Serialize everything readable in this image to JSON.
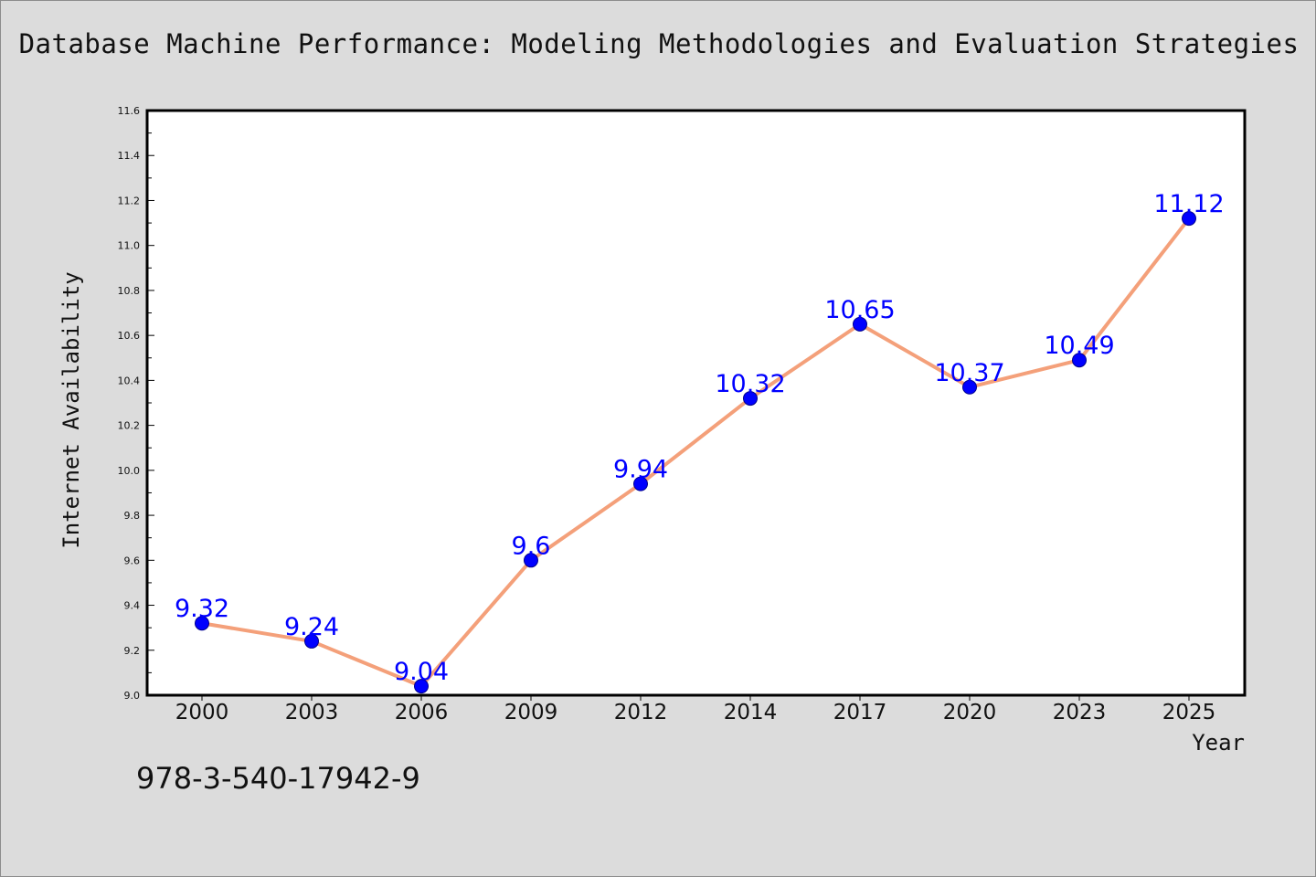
{
  "chart_data": {
    "type": "line",
    "title": "Database Machine Performance: Modeling Methodologies and Evaluation Strategies",
    "xlabel": "Year",
    "ylabel": "Internet Availability",
    "categories": [
      "2000",
      "2003",
      "2006",
      "2009",
      "2012",
      "2014",
      "2017",
      "2020",
      "2023",
      "2025"
    ],
    "series": [
      {
        "values": [
          9.32,
          9.24,
          9.04,
          9.6,
          9.94,
          10.32,
          10.65,
          10.37,
          10.49,
          11.12
        ]
      }
    ],
    "data_labels": [
      "9.32",
      "9.24",
      "9.04",
      "9.6",
      "9.94",
      "10.32",
      "10.65",
      "10.37",
      "10.49",
      "11.12"
    ],
    "ylim": [
      9.0,
      11.6
    ],
    "yticks": [
      "9.0",
      "9.2",
      "9.4",
      "9.6",
      "9.8",
      "10.0",
      "10.2",
      "10.4",
      "10.6",
      "10.8",
      "11.0",
      "11.2",
      "11.4",
      "11.6"
    ],
    "grid": false,
    "colors": {
      "line": "#f4a07a",
      "marker": "#0000ff",
      "label": "#0000ff",
      "background": "#dcdcdc",
      "plot_area": "#ffffff"
    }
  },
  "footer": {
    "isbn": "978-3-540-17942-9"
  }
}
